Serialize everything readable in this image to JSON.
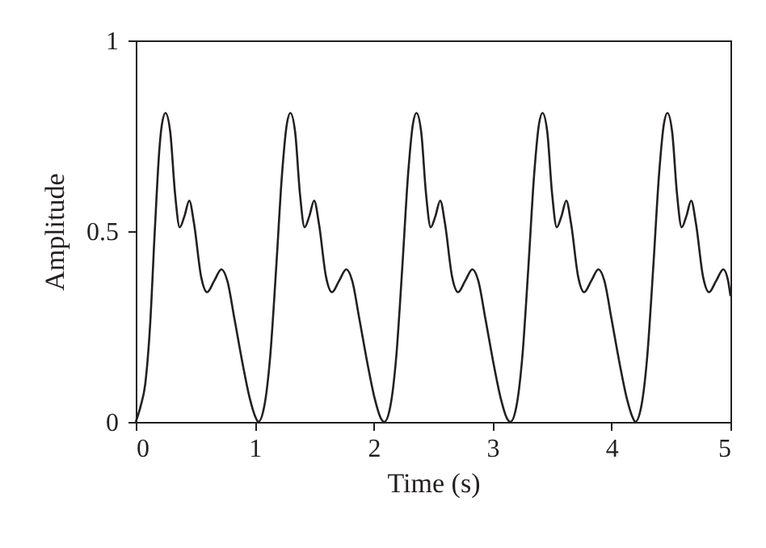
{
  "chart_data": {
    "type": "line",
    "xlabel": "Time (s)",
    "ylabel": "Amplitude",
    "xlim": [
      0,
      5
    ],
    "xticks": [
      0,
      1,
      2,
      3,
      4,
      5
    ],
    "ylim": [
      0,
      1
    ],
    "yticks": [
      0,
      0.5,
      1
    ],
    "grid": false,
    "series": [
      {
        "color": "#231f20",
        "x": [
          0,
          0.04,
          0.08,
          0.12,
          0.16,
          0.2,
          0.22,
          0.25,
          0.29,
          0.33,
          0.37,
          0.41,
          0.45,
          0.49,
          0.55,
          0.6,
          0.66,
          0.72,
          0.77,
          0.83,
          0.9,
          0.96,
          1.01,
          1.03,
          1.08,
          1.13,
          1.18,
          1.23,
          1.27,
          1.3,
          1.34,
          1.38,
          1.42,
          1.46,
          1.5,
          1.54,
          1.6,
          1.65,
          1.71,
          1.77,
          1.82,
          1.88,
          1.95,
          2.01,
          2.06,
          2.09,
          2.14,
          2.19,
          2.24,
          2.29,
          2.33,
          2.36,
          2.4,
          2.44,
          2.48,
          2.52,
          2.56,
          2.6,
          2.66,
          2.71,
          2.77,
          2.83,
          2.88,
          2.94,
          3.01,
          3.07,
          3.12,
          3.15,
          3.2,
          3.25,
          3.3,
          3.35,
          3.39,
          3.42,
          3.46,
          3.5,
          3.54,
          3.58,
          3.62,
          3.66,
          3.72,
          3.77,
          3.83,
          3.89,
          3.94,
          4.0,
          4.07,
          4.13,
          4.18,
          4.2,
          4.25,
          4.3,
          4.35,
          4.4,
          4.44,
          4.47,
          4.51,
          4.55,
          4.59,
          4.63,
          4.67,
          4.71,
          4.77,
          4.82,
          4.88,
          4.94,
          4.98,
          5.0
        ],
        "values": [
          0,
          0.04,
          0.1,
          0.25,
          0.5,
          0.72,
          0.78,
          0.81,
          0.76,
          0.6,
          0.51,
          0.54,
          0.58,
          0.52,
          0.38,
          0.34,
          0.37,
          0.4,
          0.37,
          0.27,
          0.15,
          0.06,
          0.01,
          0,
          0.04,
          0.17,
          0.4,
          0.65,
          0.78,
          0.81,
          0.76,
          0.6,
          0.51,
          0.54,
          0.58,
          0.52,
          0.38,
          0.34,
          0.37,
          0.4,
          0.37,
          0.27,
          0.15,
          0.06,
          0.01,
          0,
          0.04,
          0.17,
          0.4,
          0.65,
          0.78,
          0.81,
          0.76,
          0.6,
          0.51,
          0.54,
          0.58,
          0.52,
          0.38,
          0.34,
          0.37,
          0.4,
          0.37,
          0.27,
          0.15,
          0.06,
          0.01,
          0,
          0.04,
          0.17,
          0.4,
          0.65,
          0.78,
          0.81,
          0.76,
          0.6,
          0.51,
          0.54,
          0.58,
          0.52,
          0.38,
          0.34,
          0.37,
          0.4,
          0.37,
          0.27,
          0.15,
          0.06,
          0.01,
          0,
          0.04,
          0.17,
          0.4,
          0.65,
          0.78,
          0.81,
          0.76,
          0.6,
          0.51,
          0.54,
          0.58,
          0.52,
          0.38,
          0.34,
          0.37,
          0.4,
          0.37,
          0.33
        ]
      }
    ]
  }
}
